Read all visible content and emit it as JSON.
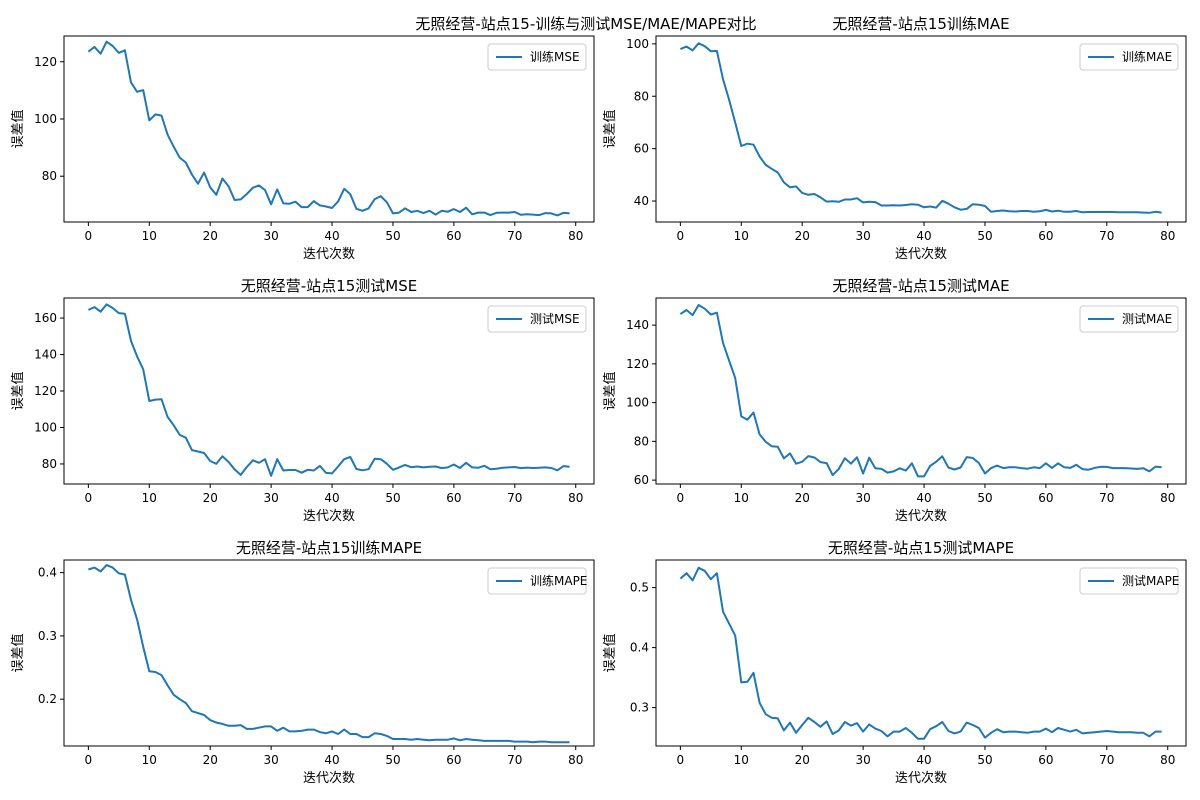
{
  "suptitle": "无照经营-站点15-训练与测试MSE/MAE/MAPE对比",
  "series_color": "#1f77b4",
  "chart_data": [
    {
      "type": "line",
      "title": "无照经营-站点15训练MSE",
      "xlabel": "迭代次数",
      "ylabel": "误差值",
      "legend": "训练MSE",
      "legend_loc": "top-right",
      "xlim": [
        -4,
        83
      ],
      "ylim": [
        64,
        129
      ],
      "xticks": [
        0,
        10,
        20,
        30,
        40,
        50,
        60,
        70,
        80
      ],
      "yticks": [
        80,
        100,
        120
      ],
      "grid": false,
      "values": [
        123.5,
        125.2,
        122.8,
        127.0,
        125.5,
        123.1,
        124.0,
        112.8,
        109.5,
        110.1,
        99.5,
        101.6,
        101.2,
        94.5,
        90.3,
        86.5,
        84.8,
        80.6,
        77.4,
        81.3,
        76.1,
        73.5,
        79.2,
        76.5,
        71.7,
        71.9,
        73.8,
        76.0,
        76.8,
        75.2,
        70.2,
        75.4,
        70.5,
        70.4,
        71.1,
        69.2,
        69.2,
        71.3,
        69.8,
        69.4,
        68.9,
        71.2,
        75.6,
        73.7,
        68.6,
        67.9,
        68.8,
        72.0,
        73.0,
        70.9,
        67.0,
        67.3,
        68.8,
        67.5,
        67.9,
        67.1,
        67.9,
        66.6,
        67.9,
        67.6,
        68.5,
        67.5,
        69.0,
        66.7,
        67.3,
        67.3,
        66.4,
        67.2,
        67.3,
        67.3,
        67.5,
        66.5,
        66.7,
        66.6,
        66.4,
        67.1,
        67.0,
        66.3,
        67.2,
        67.0
      ]
    },
    {
      "type": "line",
      "title": "无照经营-站点15训练MAE",
      "xlabel": "迭代次数",
      "ylabel": "误差值",
      "legend": "训练MAE",
      "legend_loc": "top-right",
      "xlim": [
        -4,
        83
      ],
      "ylim": [
        32,
        103
      ],
      "xticks": [
        0,
        10,
        20,
        30,
        40,
        50,
        60,
        70,
        80
      ],
      "yticks": [
        40,
        60,
        80,
        100
      ],
      "grid": false,
      "values": [
        98.0,
        99.0,
        97.5,
        100.2,
        99.1,
        97.2,
        97.3,
        86.5,
        78.7,
        70.0,
        61.0,
        61.9,
        61.5,
        57.0,
        53.8,
        52.3,
        50.9,
        47.1,
        45.2,
        45.6,
        43.1,
        42.4,
        42.7,
        41.4,
        39.8,
        39.9,
        39.7,
        40.6,
        40.6,
        41.1,
        39.5,
        39.7,
        39.6,
        38.3,
        38.3,
        38.4,
        38.3,
        38.5,
        38.8,
        38.6,
        37.6,
        37.9,
        37.5,
        40.1,
        39.0,
        37.6,
        36.7,
        37.0,
        38.8,
        38.6,
        38.1,
        35.9,
        36.2,
        36.4,
        36.1,
        36.0,
        36.2,
        36.2,
        35.9,
        36.1,
        36.6,
        36.0,
        36.3,
        35.9,
        35.9,
        36.2,
        35.7,
        35.8,
        35.8,
        35.8,
        35.8,
        35.8,
        35.7,
        35.7,
        35.7,
        35.7,
        35.6,
        35.5,
        35.9,
        35.6
      ]
    },
    {
      "type": "line",
      "title": "无照经营-站点15测试MSE",
      "xlabel": "迭代次数",
      "ylabel": "误差值",
      "legend": "测试MSE",
      "legend_loc": "top-right",
      "xlim": [
        -4,
        83
      ],
      "ylim": [
        69,
        171
      ],
      "xticks": [
        0,
        10,
        20,
        30,
        40,
        50,
        60,
        70,
        80
      ],
      "yticks": [
        80,
        100,
        120,
        140,
        160
      ],
      "grid": false,
      "values": [
        164.5,
        166.0,
        163.5,
        167.5,
        165.5,
        162.7,
        162.4,
        147.5,
        139.0,
        131.9,
        114.5,
        115.3,
        115.5,
        105.8,
        101.2,
        95.9,
        94.4,
        87.6,
        86.8,
        86.0,
        81.6,
        80.1,
        84.2,
        81.1,
        77.0,
        74.0,
        78.3,
        82.0,
        80.6,
        82.6,
        73.5,
        82.6,
        76.4,
        76.7,
        76.7,
        75.2,
        76.8,
        76.4,
        78.9,
        75.1,
        74.8,
        78.6,
        82.6,
        83.8,
        77.2,
        76.5,
        77.1,
        82.8,
        82.6,
        80.1,
        76.8,
        78.1,
        79.5,
        78.2,
        78.6,
        78.1,
        78.5,
        78.6,
        77.7,
        78.1,
        79.7,
        77.8,
        80.6,
        78.1,
        77.9,
        79.0,
        77.1,
        77.4,
        77.9,
        78.1,
        78.3,
        77.7,
        78.0,
        77.8,
        77.9,
        78.1,
        77.8,
        76.5,
        78.8,
        78.5
      ]
    },
    {
      "type": "line",
      "title": "无照经营-站点15测试MAE",
      "xlabel": "迭代次数",
      "ylabel": "误差值",
      "legend": "测试MAE",
      "legend_loc": "top-right",
      "xlim": [
        -4,
        83
      ],
      "ylim": [
        58,
        154
      ],
      "xticks": [
        0,
        10,
        20,
        30,
        40,
        50,
        60,
        70,
        80
      ],
      "yticks": [
        60,
        80,
        100,
        120,
        140
      ],
      "grid": false,
      "values": [
        145.7,
        147.8,
        145.2,
        150.4,
        148.5,
        145.5,
        146.4,
        130.9,
        121.7,
        112.7,
        92.9,
        91.2,
        94.9,
        83.6,
        79.8,
        77.5,
        77.2,
        71.2,
        73.8,
        68.5,
        69.5,
        72.4,
        71.7,
        69.3,
        68.8,
        62.6,
        65.8,
        71.3,
        68.5,
        71.8,
        63.4,
        71.6,
        66.1,
        65.8,
        63.9,
        64.5,
        66.1,
        64.9,
        68.7,
        61.9,
        61.9,
        67.3,
        69.5,
        72.3,
        66.5,
        65.5,
        66.5,
        71.9,
        71.4,
        68.8,
        63.4,
        66.2,
        67.5,
        66.2,
        66.6,
        66.6,
        66.2,
        65.9,
        66.6,
        66.2,
        68.7,
        66.3,
        68.7,
        66.6,
        66.3,
        67.9,
        65.7,
        65.4,
        66.3,
        66.9,
        66.8,
        66.2,
        66.2,
        66.2,
        66.0,
        65.8,
        66.1,
        64.5,
        67.0,
        66.6
      ]
    },
    {
      "type": "line",
      "title": "无照经营-站点15训练MAPE",
      "xlabel": "迭代次数",
      "ylabel": "误差值",
      "legend": "训练MAPE",
      "legend_loc": "top-right",
      "xlim": [
        -4,
        83
      ],
      "ylim": [
        0.126,
        0.42
      ],
      "xticks": [
        0,
        10,
        20,
        30,
        40,
        50,
        60,
        70,
        80
      ],
      "yticks": [
        0.2,
        0.3,
        0.4
      ],
      "grid": false,
      "values": [
        0.405,
        0.408,
        0.402,
        0.412,
        0.408,
        0.399,
        0.397,
        0.357,
        0.326,
        0.283,
        0.244,
        0.243,
        0.238,
        0.222,
        0.207,
        0.2,
        0.194,
        0.181,
        0.178,
        0.175,
        0.167,
        0.163,
        0.161,
        0.158,
        0.158,
        0.159,
        0.153,
        0.153,
        0.155,
        0.157,
        0.157,
        0.15,
        0.155,
        0.149,
        0.149,
        0.15,
        0.152,
        0.152,
        0.148,
        0.146,
        0.149,
        0.145,
        0.152,
        0.145,
        0.145,
        0.14,
        0.14,
        0.146,
        0.145,
        0.142,
        0.137,
        0.137,
        0.137,
        0.136,
        0.137,
        0.136,
        0.135,
        0.136,
        0.136,
        0.136,
        0.138,
        0.135,
        0.137,
        0.136,
        0.135,
        0.134,
        0.134,
        0.134,
        0.134,
        0.134,
        0.133,
        0.133,
        0.133,
        0.132,
        0.133,
        0.133,
        0.132,
        0.132,
        0.132,
        0.132
      ]
    },
    {
      "type": "line",
      "title": "无照经营-站点15测试MAPE",
      "xlabel": "迭代次数",
      "ylabel": "误差值",
      "legend": "测试MAPE",
      "legend_loc": "top-right",
      "xlim": [
        -4,
        83
      ],
      "ylim": [
        0.236,
        0.546
      ],
      "xticks": [
        0,
        10,
        20,
        30,
        40,
        50,
        60,
        70,
        80
      ],
      "yticks": [
        0.3,
        0.4,
        0.5
      ],
      "grid": false,
      "values": [
        0.515,
        0.524,
        0.512,
        0.533,
        0.528,
        0.514,
        0.524,
        0.46,
        0.44,
        0.42,
        0.342,
        0.343,
        0.358,
        0.308,
        0.289,
        0.283,
        0.282,
        0.262,
        0.275,
        0.258,
        0.271,
        0.283,
        0.276,
        0.268,
        0.277,
        0.256,
        0.262,
        0.276,
        0.27,
        0.274,
        0.26,
        0.272,
        0.265,
        0.261,
        0.252,
        0.26,
        0.26,
        0.266,
        0.258,
        0.248,
        0.248,
        0.264,
        0.269,
        0.276,
        0.261,
        0.257,
        0.26,
        0.275,
        0.271,
        0.266,
        0.25,
        0.258,
        0.264,
        0.259,
        0.26,
        0.26,
        0.259,
        0.258,
        0.26,
        0.26,
        0.265,
        0.259,
        0.266,
        0.263,
        0.26,
        0.263,
        0.257,
        0.258,
        0.259,
        0.26,
        0.261,
        0.26,
        0.259,
        0.259,
        0.259,
        0.258,
        0.258,
        0.252,
        0.26,
        0.26
      ]
    }
  ]
}
